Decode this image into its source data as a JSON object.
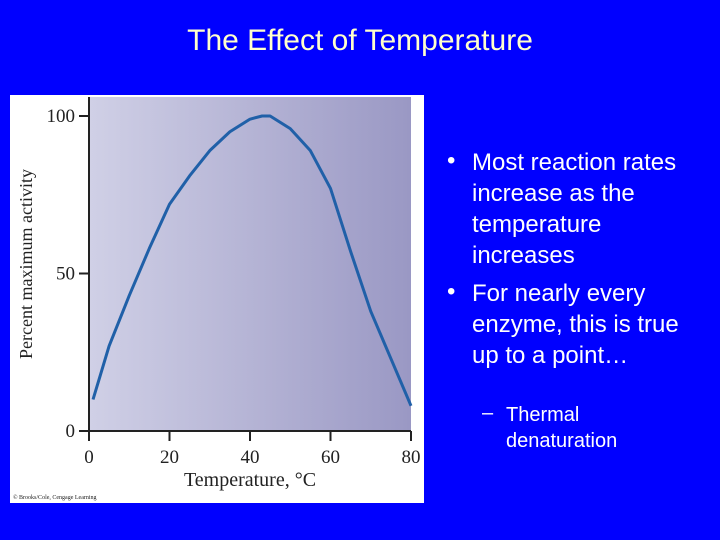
{
  "slide": {
    "title": "The Effect of Temperature",
    "bullets": [
      "Most reaction rates increase as the temperature increases",
      "For nearly every enzyme, this is true up to a point…"
    ],
    "sub_bullets": [
      "Thermal denaturation"
    ]
  },
  "chart_data": {
    "type": "line",
    "x_label": "Temperature, °C",
    "y_label": "Percent maximum activity",
    "credit": "© Brooks/Cole, Cengage Learning",
    "x": [
      1,
      5,
      10,
      15,
      20,
      25,
      30,
      35,
      40,
      43,
      45,
      50,
      55,
      60,
      65,
      70,
      75,
      80
    ],
    "series": [
      {
        "color": "#2060a8",
        "values": [
          10,
          27,
          43,
          58,
          72,
          81,
          89,
          95,
          99,
          100,
          100,
          96,
          89,
          77,
          57,
          38,
          23,
          8
        ]
      }
    ],
    "xlim": [
      0,
      80
    ],
    "xticks": [
      0,
      20,
      40,
      60,
      80
    ],
    "ylim": [
      0,
      100
    ],
    "yticks": [
      0,
      50,
      100
    ]
  }
}
